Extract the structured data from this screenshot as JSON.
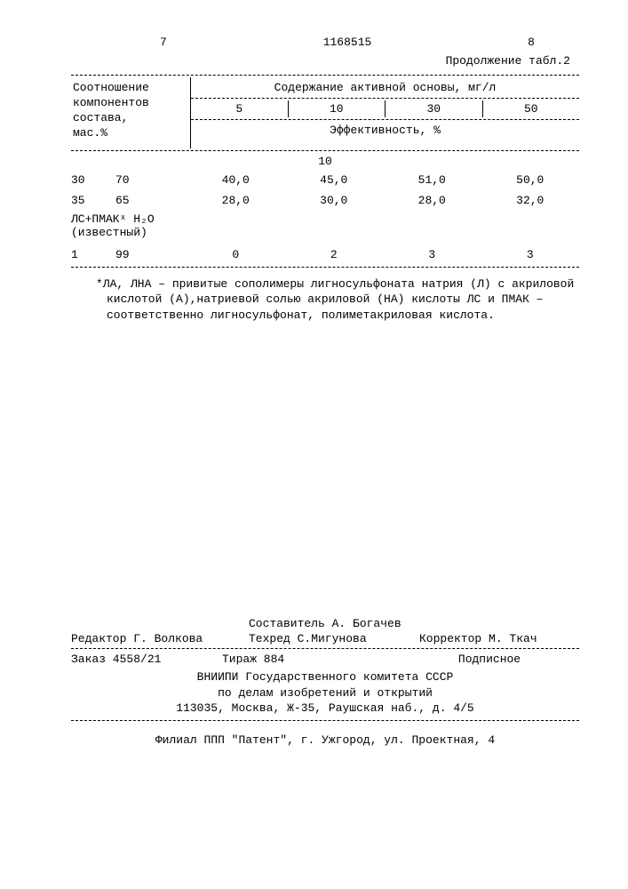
{
  "header": {
    "page_left": "7",
    "doc_number": "1168515",
    "page_right": "8",
    "continuation": "Продолжение табл.2"
  },
  "table": {
    "left_header_l1": "Соотношение",
    "left_header_l2": "компонентов",
    "left_header_l3": "состава,",
    "left_header_l4": "мас.%",
    "right_title": "Содержание активной основы, мг/л",
    "cols": [
      "5",
      "10",
      "30",
      "50"
    ],
    "eff_label": "Эффективность, %",
    "eff_sub": "10",
    "rows": [
      {
        "a": "30",
        "b": "70",
        "v": [
          "40,0",
          "45,0",
          "51,0",
          "50,0"
        ]
      },
      {
        "a": "35",
        "b": "65",
        "v": [
          "28,0",
          "30,0",
          "28,0",
          "32,0"
        ]
      }
    ],
    "sub_label_l1": "ЛС+ПМАКˣ H₂O",
    "sub_label_l2": "(известный)",
    "sub_row": {
      "a": "1",
      "b": "99",
      "v": [
        "0",
        "2",
        "3",
        "3"
      ]
    },
    "footnote": "*ЛА, ЛНА – привитые сополимеры лигносульфоната натрия (Л) с акриловой кислотой (А),натриевой солью акриловой (НА) кислоты ЛС и ПМАК – соответственно лигносульфонат, полиметакриловая кислота."
  },
  "credits": {
    "compiler": "Составитель А. Богачев",
    "editor": "Редактор Г. Волкова",
    "techred": "Техред С.Мигунова",
    "corrector": "Корректор М. Ткач",
    "order": "Заказ 4558/21",
    "tirage": "Тираж   884",
    "subscription": "Подписное",
    "org_l1": "ВНИИПИ Государственного комитета СССР",
    "org_l2": "по делам изобретений и открытий",
    "org_l3": "113035, Москва, Ж-35, Раушская наб., д. 4/5",
    "publisher": "Филиал ППП \"Патент\", г. Ужгород, ул. Проектная, 4"
  }
}
